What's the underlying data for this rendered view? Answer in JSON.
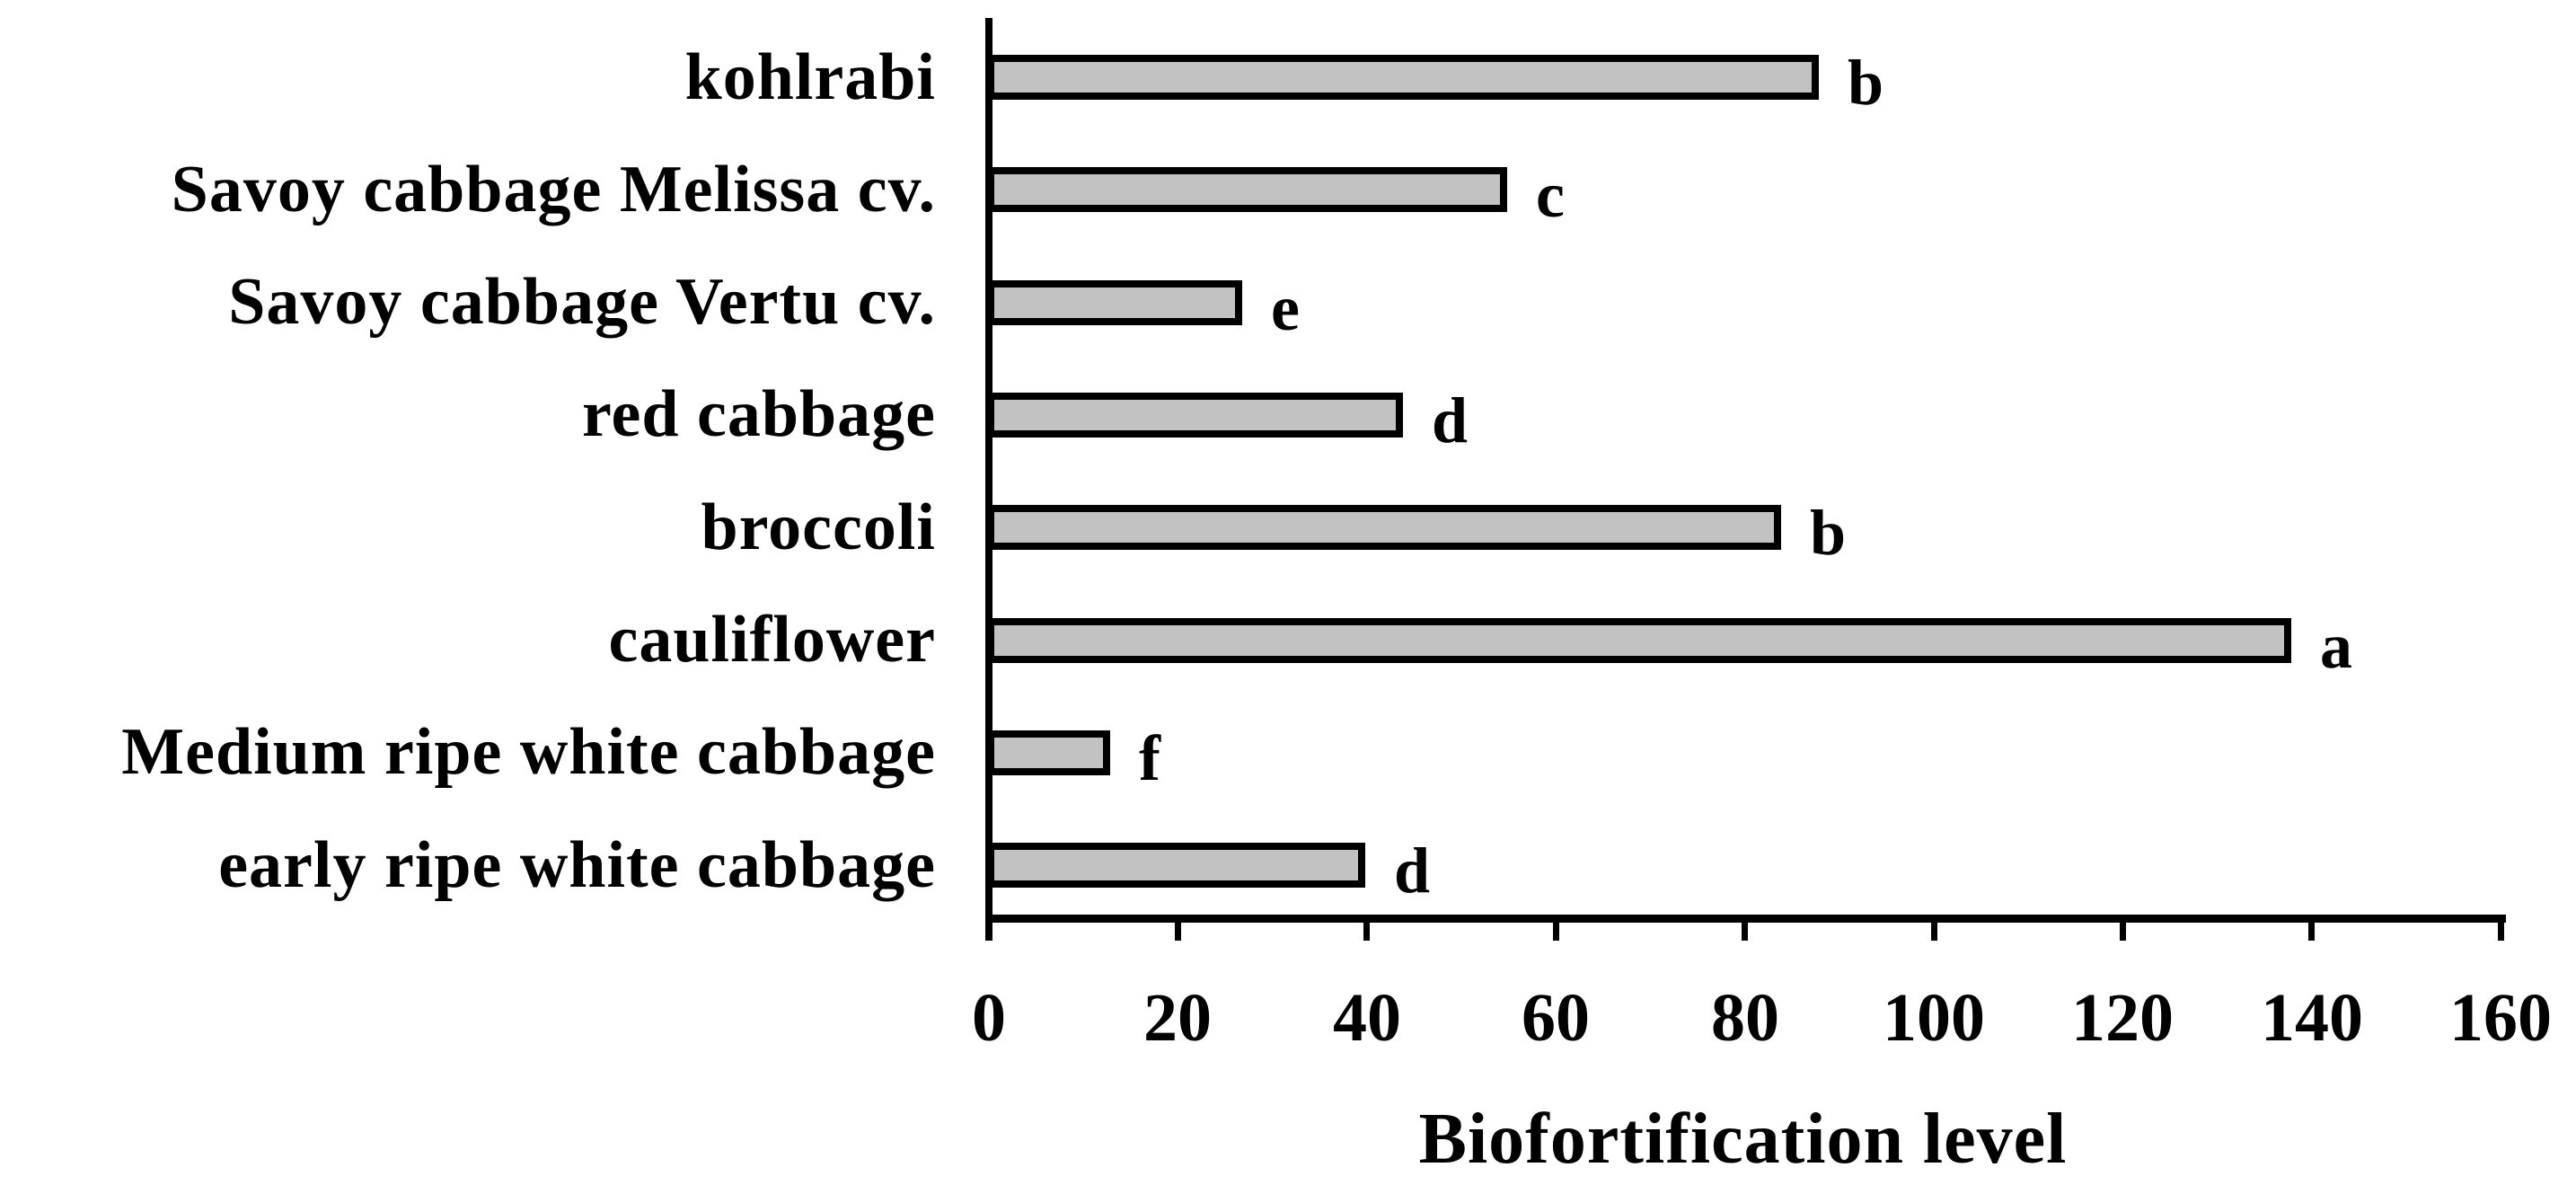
{
  "figure": {
    "background_color": "#ffffff",
    "text_color": "#000000"
  },
  "chart_data": {
    "type": "bar",
    "orientation": "horizontal",
    "title": "",
    "xlabel": "Biofortification level",
    "ylabel": "",
    "categories": [
      "kohlrabi",
      "Savoy cabbage Melissa cv.",
      "Savoy cabbage Vertu cv.",
      "red cabbage",
      "broccoli",
      "cauliflower",
      "Medium ripe white cabbage",
      "early ripe white cabbage"
    ],
    "values": [
      88,
      55,
      27,
      44,
      84,
      138,
      13,
      40
    ],
    "significance_letters": [
      "b",
      "c",
      "e",
      "d",
      "b",
      "a",
      "f",
      "d"
    ],
    "x_ticks": [
      0,
      20,
      40,
      60,
      80,
      100,
      120,
      140,
      160
    ],
    "xlim": [
      0,
      160
    ],
    "grid": false,
    "legend": false,
    "bar_fill_color": "#c2c2c2",
    "bar_border_color": "#000000",
    "axis_color": "#000000"
  }
}
